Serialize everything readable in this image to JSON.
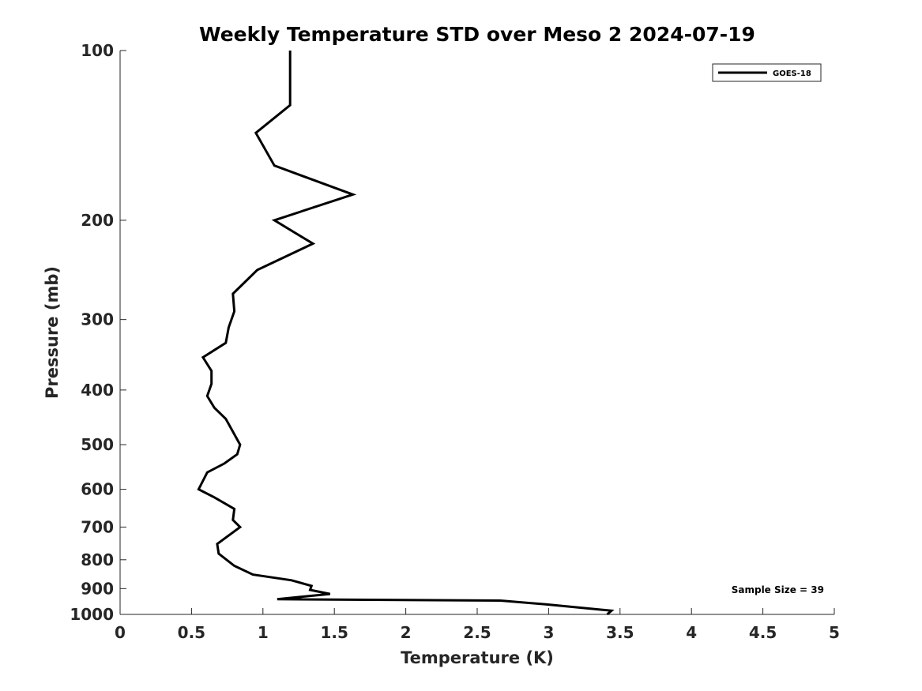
{
  "chart_data": {
    "type": "line",
    "title": "Weekly Temperature STD over Meso 2 2024-07-19",
    "xlabel": "Temperature (K)",
    "ylabel": "Pressure (mb)",
    "xlim": [
      0,
      5
    ],
    "ylim": [
      100,
      1000
    ],
    "y_scale": "log",
    "y_reversed": true,
    "xticks": [
      0,
      0.5,
      1,
      1.5,
      2,
      2.5,
      3,
      3.5,
      4,
      4.5,
      5
    ],
    "xtick_labels": [
      "0",
      "0.5",
      "1",
      "1.5",
      "2",
      "2.5",
      "3",
      "3.5",
      "4",
      "4.5",
      "5"
    ],
    "yticks": [
      100,
      200,
      300,
      400,
      500,
      600,
      700,
      800,
      900,
      1000
    ],
    "ytick_labels": [
      "100",
      "200",
      "300",
      "400",
      "500",
      "600",
      "700",
      "800",
      "900",
      "1000"
    ],
    "grid": false,
    "legend_position": "top-right",
    "annotation": "Sample Size = 39",
    "series": [
      {
        "name": "GOES-18",
        "color": "#000000",
        "x": [
          1.19,
          1.19,
          1.19,
          0.95,
          1.08,
          1.63,
          1.08,
          1.35,
          0.96,
          0.79,
          0.8,
          0.76,
          0.74,
          0.58,
          0.64,
          0.64,
          0.61,
          0.66,
          0.74,
          0.84,
          0.82,
          0.73,
          0.61,
          0.55,
          0.66,
          0.8,
          0.79,
          0.84,
          0.68,
          0.69,
          0.8,
          0.93,
          1.2,
          1.34,
          1.33,
          1.47,
          1.1,
          2.66,
          2.98,
          3.44,
          3.41
        ],
        "y": [
          100,
          112,
          125,
          140,
          160,
          180,
          200,
          220,
          245,
          270,
          290,
          310,
          330,
          350,
          370,
          390,
          410,
          430,
          450,
          500,
          520,
          540,
          560,
          600,
          620,
          650,
          680,
          700,
          750,
          780,
          820,
          850,
          870,
          890,
          905,
          920,
          940,
          945,
          960,
          985,
          1000
        ]
      }
    ]
  }
}
